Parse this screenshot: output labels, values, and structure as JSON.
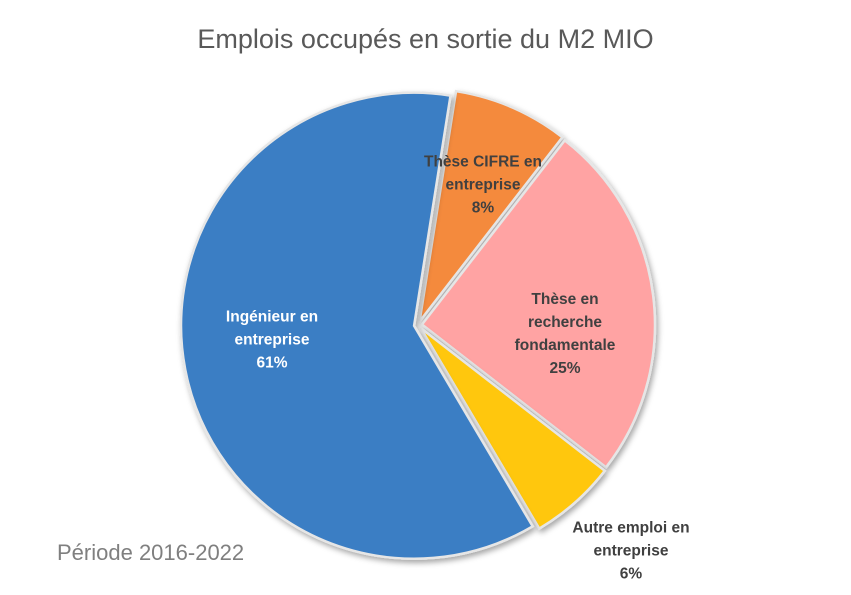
{
  "title": "Emplois occupés en sortie du M2 MIO",
  "footnote": "Période 2016-2022",
  "chart_data": {
    "type": "pie",
    "title": "Emplois occupés en sortie du M2 MIO",
    "start_angle_deg": 9,
    "slices": [
      {
        "label_lines": [
          "Thèse CIFRE en",
          "entreprise"
        ],
        "label": "Thèse CIFRE en entreprise",
        "value": 8,
        "pct": "8%",
        "color": "#f48a3c"
      },
      {
        "label_lines": [
          "Thèse en",
          "recherche",
          "fondamentale"
        ],
        "label": "Thèse en recherche fondamentale",
        "value": 25,
        "pct": "25%",
        "color": "#ffa3a3"
      },
      {
        "label_lines": [
          "Autre emploi en",
          "entreprise"
        ],
        "label": "Autre emploi en entreprise",
        "value": 6,
        "pct": "6%",
        "color": "#ffc70a"
      },
      {
        "label_lines": [
          "Ingénieur en",
          "entreprise"
        ],
        "label": "Ingénieur en entreprise",
        "value": 61,
        "pct": "61%",
        "color": "#3a7ec4"
      }
    ]
  }
}
